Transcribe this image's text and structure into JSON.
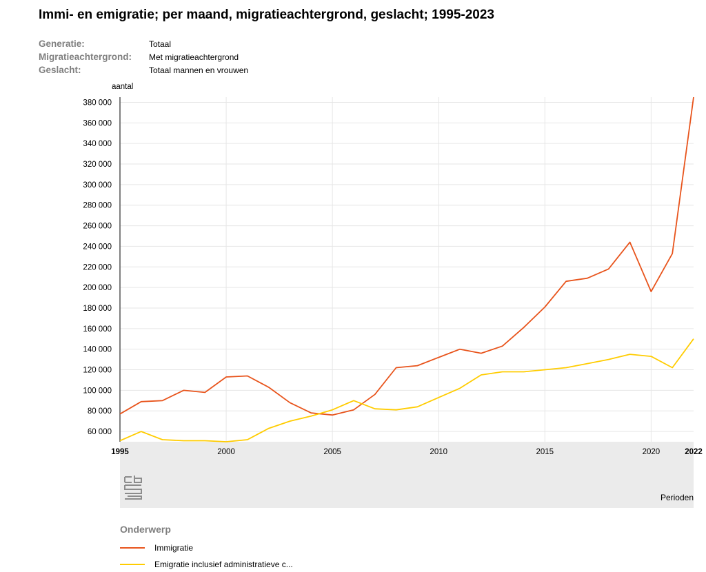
{
  "page": {
    "title": "Immi- en emigratie; per maand, migratieachtergrond, geslacht; 1995-2023",
    "filters": [
      {
        "label": "Generatie:",
        "value": "Totaal"
      },
      {
        "label": "Migratieachtergrond:",
        "value": "Met migratieachtergrond"
      },
      {
        "label": "Geslacht:",
        "value": "Totaal mannen en vrouwen"
      }
    ],
    "legend_title": "Onderwerp",
    "logo_text": "cbs"
  },
  "chart_data": {
    "type": "line",
    "ylabel": "aantal",
    "xlabel": "Perioden",
    "x": [
      1995,
      1996,
      1997,
      1998,
      1999,
      2000,
      2001,
      2002,
      2003,
      2004,
      2005,
      2006,
      2007,
      2008,
      2009,
      2010,
      2011,
      2012,
      2013,
      2014,
      2015,
      2016,
      2017,
      2018,
      2019,
      2020,
      2021,
      2022
    ],
    "xlim": [
      1995,
      2022
    ],
    "ylim": [
      50000,
      385000
    ],
    "yticks": [
      60000,
      80000,
      100000,
      120000,
      140000,
      160000,
      180000,
      200000,
      220000,
      240000,
      260000,
      280000,
      300000,
      320000,
      340000,
      360000,
      380000
    ],
    "ytick_labels": [
      "60 000",
      "80 000",
      "100 000",
      "120 000",
      "140 000",
      "160 000",
      "180 000",
      "200 000",
      "220 000",
      "240 000",
      "260 000",
      "280 000",
      "300 000",
      "320 000",
      "340 000",
      "360 000",
      "380 000"
    ],
    "xticks": [
      1995,
      2000,
      2005,
      2010,
      2015,
      2020,
      2022
    ],
    "xtick_labels": [
      "1995",
      "2000",
      "2005",
      "2010",
      "2015",
      "2020",
      "2022"
    ],
    "xtick_bold": [
      true,
      false,
      false,
      false,
      false,
      false,
      true
    ],
    "grid": true,
    "legend_position": "bottom",
    "series": [
      {
        "name": "Immigratie",
        "color": "#e8541c",
        "values": [
          77000,
          89000,
          90000,
          100000,
          98000,
          113000,
          114000,
          103000,
          88000,
          78000,
          76000,
          81000,
          96000,
          122000,
          124000,
          132000,
          140000,
          136000,
          143000,
          161000,
          181000,
          206000,
          209000,
          218000,
          244000,
          196000,
          233000,
          385000
        ]
      },
      {
        "name": "Emigratie inclusief administratieve c...",
        "color": "#ffcc00",
        "values": [
          51000,
          60000,
          52000,
          51000,
          51000,
          50000,
          52000,
          63000,
          70000,
          75000,
          81000,
          90000,
          82000,
          81000,
          84000,
          93000,
          102000,
          115000,
          118000,
          118000,
          120000,
          122000,
          126000,
          130000,
          135000,
          133000,
          122000,
          150000
        ]
      }
    ]
  }
}
